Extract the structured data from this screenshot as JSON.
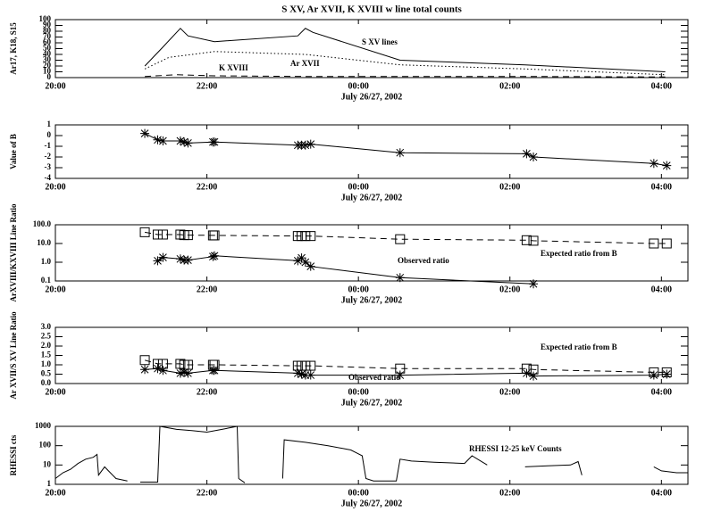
{
  "chart_data": [
    {
      "type": "line",
      "title": "S XV, Ar XVII, K XVIII w line total counts",
      "ylabel": "Ar17, K18, S15",
      "xlabel": "July 26/27, 2002",
      "xlim": [
        0,
        8.35
      ],
      "xticks": [
        {
          "value": 0,
          "label": "20:00"
        },
        {
          "value": 2,
          "label": "22:00"
        },
        {
          "value": 4,
          "label": "00:00"
        },
        {
          "value": 6,
          "label": "02:00"
        },
        {
          "value": 8,
          "label": "04:00"
        }
      ],
      "ylim": [
        0,
        100
      ],
      "yticks": [
        0,
        10,
        20,
        30,
        40,
        50,
        60,
        70,
        80,
        90,
        100
      ],
      "log": false,
      "annotations": [
        "S XV lines",
        "Ar XVII",
        "K XVIII"
      ],
      "series": [
        {
          "name": "S XV lines",
          "color": "#000000",
          "style": "solid",
          "marker": "none",
          "x": [
            1.18,
            1.4,
            1.65,
            1.75,
            2.1,
            3.2,
            3.3,
            3.4,
            4.55,
            6.2,
            8.05
          ],
          "values": [
            20,
            50,
            85,
            72,
            62,
            72,
            85,
            78,
            30,
            22,
            10
          ]
        },
        {
          "name": "Ar XVII",
          "color": "#000000",
          "style": "dotted",
          "marker": "none",
          "x": [
            1.18,
            1.5,
            2.1,
            3.3,
            4.55,
            6.2,
            8.05
          ],
          "values": [
            15,
            35,
            45,
            40,
            22,
            15,
            5
          ]
        },
        {
          "name": "K XVIII",
          "color": "#000000",
          "style": "dashed",
          "marker": "none",
          "x": [
            1.18,
            1.6,
            2.1,
            3.3,
            4.55,
            6.2,
            8.05
          ],
          "values": [
            2,
            5,
            3,
            2,
            2,
            2,
            1
          ]
        }
      ]
    },
    {
      "type": "line",
      "ylabel": "Value of B",
      "xlabel": "July 26/27, 2002",
      "xlim": [
        0,
        8.35
      ],
      "xticks": [
        {
          "value": 0,
          "label": "20:00"
        },
        {
          "value": 2,
          "label": "22:00"
        },
        {
          "value": 4,
          "label": "00:00"
        },
        {
          "value": 6,
          "label": "02:00"
        },
        {
          "value": 8,
          "label": "04:00"
        }
      ],
      "ylim": [
        -4,
        1
      ],
      "yticks": [
        -4,
        -3,
        -2,
        -1,
        0,
        1
      ],
      "log": false,
      "annotations": [],
      "series": [
        {
          "name": "B",
          "color": "#000000",
          "style": "solid",
          "marker": "star",
          "x": [
            1.18,
            1.35,
            1.42,
            1.65,
            1.7,
            1.75,
            2.08,
            2.1,
            3.2,
            3.25,
            3.3,
            3.37,
            4.55,
            6.22,
            6.31,
            7.9,
            8.07
          ],
          "values": [
            0.2,
            -0.4,
            -0.5,
            -0.5,
            -0.6,
            -0.7,
            -0.6,
            -0.6,
            -0.9,
            -0.9,
            -0.9,
            -0.8,
            -1.6,
            -1.7,
            -2.0,
            -2.6,
            -2.8
          ]
        }
      ]
    },
    {
      "type": "line",
      "ylabel": "ArXVIII/KXVIII Line Ratio",
      "xlabel": "July 26/27, 2002",
      "xlim": [
        0,
        8.35
      ],
      "xticks": [
        {
          "value": 0,
          "label": "20:00"
        },
        {
          "value": 2,
          "label": "22:00"
        },
        {
          "value": 4,
          "label": "00:00"
        },
        {
          "value": 6,
          "label": "02:00"
        },
        {
          "value": 8,
          "label": "04:00"
        }
      ],
      "ylim": [
        0.1,
        100
      ],
      "yticks": [
        0.1,
        {
          "value": 1,
          "label": "1.0"
        },
        {
          "value": 10,
          "label": "10.0"
        },
        {
          "value": 100,
          "label": "100.0"
        }
      ],
      "log": true,
      "annotations": [
        "Observed ratio",
        "Expected ratio from B"
      ],
      "series": [
        {
          "name": "Expected ratio from B",
          "color": "#000000",
          "style": "dashed",
          "marker": "square",
          "x": [
            1.18,
            1.35,
            1.42,
            1.65,
            1.7,
            1.75,
            2.08,
            2.1,
            3.2,
            3.25,
            3.3,
            3.37,
            4.55,
            6.22,
            6.31,
            7.9,
            8.07
          ],
          "values": [
            40,
            30,
            30,
            30,
            28,
            28,
            27,
            27,
            25,
            25,
            25,
            25,
            17,
            15,
            14,
            10,
            10
          ]
        },
        {
          "name": "Observed ratio",
          "color": "#000000",
          "style": "solid",
          "marker": "star",
          "x": [
            1.35,
            1.42,
            1.65,
            1.7,
            1.75,
            2.08,
            2.1,
            3.2,
            3.25,
            3.3,
            3.37,
            4.55,
            6.31
          ],
          "values": [
            1.2,
            1.8,
            1.5,
            1.3,
            1.3,
            2.0,
            2.2,
            1.2,
            1.7,
            1.0,
            0.6,
            0.15,
            0.07
          ]
        }
      ]
    },
    {
      "type": "line",
      "ylabel": "Ar XVII/S XV Line Ratio",
      "xlabel": "July 26/27, 2002",
      "xlim": [
        0,
        8.35
      ],
      "xticks": [
        {
          "value": 0,
          "label": "20:00"
        },
        {
          "value": 2,
          "label": "22:00"
        },
        {
          "value": 4,
          "label": "00:00"
        },
        {
          "value": 6,
          "label": "02:00"
        },
        {
          "value": 8,
          "label": "04:00"
        }
      ],
      "ylim": [
        0,
        3
      ],
      "yticks": [
        {
          "value": 0,
          "label": "0.0"
        },
        0.5,
        {
          "value": 1,
          "label": "1.0"
        },
        1.5,
        {
          "value": 2,
          "label": "2.0"
        },
        2.5,
        {
          "value": 3,
          "label": "3.0"
        }
      ],
      "log": false,
      "annotations": [
        "Expected ratio from B",
        "Observed ratio"
      ],
      "series": [
        {
          "name": "Expected ratio from B",
          "color": "#000000",
          "style": "dashed",
          "marker": "square",
          "x": [
            1.18,
            1.35,
            1.42,
            1.65,
            1.7,
            1.75,
            2.08,
            2.1,
            3.2,
            3.25,
            3.3,
            3.37,
            4.55,
            6.22,
            6.31,
            7.9,
            8.07
          ],
          "values": [
            1.25,
            1.05,
            1.05,
            1.05,
            1.0,
            1.0,
            1.0,
            1.0,
            0.95,
            0.95,
            0.95,
            0.95,
            0.8,
            0.8,
            0.75,
            0.6,
            0.6
          ]
        },
        {
          "name": "Observed ratio",
          "color": "#000000",
          "style": "solid",
          "marker": "star",
          "x": [
            1.18,
            1.35,
            1.42,
            1.65,
            1.7,
            1.75,
            2.08,
            2.1,
            3.2,
            3.25,
            3.3,
            3.37,
            4.55,
            6.22,
            6.31,
            7.9,
            8.07
          ],
          "values": [
            0.75,
            0.8,
            0.7,
            0.55,
            0.6,
            0.55,
            0.7,
            0.7,
            0.55,
            0.5,
            0.45,
            0.45,
            0.45,
            0.55,
            0.4,
            0.45,
            0.5
          ]
        }
      ]
    },
    {
      "type": "line",
      "ylabel": "RHESSI cts",
      "xlabel": "July 26/27, 2002",
      "xlim": [
        0,
        8.35
      ],
      "xticks": [
        {
          "value": 0,
          "label": "20:00"
        },
        {
          "value": 2,
          "label": "22:00"
        },
        {
          "value": 4,
          "label": "00:00"
        },
        {
          "value": 6,
          "label": "02:00"
        },
        {
          "value": 8,
          "label": "04:00"
        }
      ],
      "ylim": [
        1,
        1000
      ],
      "yticks": [
        1,
        10,
        100,
        1000
      ],
      "log": true,
      "annotations": [
        "RHESSI 12-25 keV Counts"
      ],
      "series": [
        {
          "name": "RHESSI 12-25 keV Counts",
          "color": "#000000",
          "style": "solid",
          "marker": "none",
          "x": [
            0,
            0.1,
            0.2,
            0.3,
            0.4,
            0.5,
            0.55,
            0.57,
            0.65,
            0.7,
            0.8,
            0.95,
            1.05,
            1.12,
            1.35,
            1.38,
            1.6,
            1.8,
            2.0,
            2.2,
            2.4,
            2.42,
            2.5,
            2.8,
            3.0,
            3.02,
            3.3,
            3.6,
            3.9,
            4.05,
            4.1,
            4.2,
            4.5,
            4.55,
            4.7,
            5.0,
            5.4,
            5.5,
            5.7,
            6.0,
            6.2,
            6.5,
            6.8,
            6.9,
            6.95,
            7.3,
            7.9,
            8.0,
            8.2,
            8.35
          ],
          "values": [
            2,
            4,
            6,
            12,
            20,
            25,
            35,
            3,
            8,
            5,
            2,
            1.5,
            null,
            1.3,
            1.3,
            1000,
            700,
            600,
            500,
            700,
            1000,
            2,
            1.2,
            null,
            2,
            200,
            150,
            100,
            60,
            30,
            2,
            1.5,
            1.5,
            20,
            16,
            14,
            12,
            30,
            10,
            null,
            8,
            9,
            10,
            15,
            3,
            null,
            8,
            5,
            4,
            4
          ]
        }
      ]
    }
  ]
}
